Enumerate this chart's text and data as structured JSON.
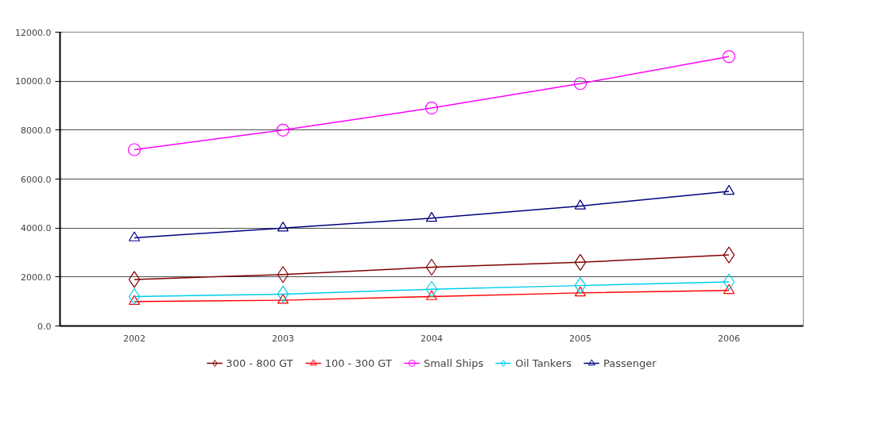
{
  "chart_data": {
    "type": "line",
    "categories": [
      "2002",
      "2003",
      "2004",
      "2005",
      "2006"
    ],
    "series": [
      {
        "name": "300 - 800 GT",
        "color": "#800000",
        "marker": "diamond",
        "values": [
          1900,
          2100,
          2400,
          2600,
          2900
        ]
      },
      {
        "name": "100 - 300 GT",
        "color": "#ff0000",
        "marker": "triangle",
        "values": [
          1000,
          1050,
          1200,
          1350,
          1450
        ]
      },
      {
        "name": "Small Ships",
        "color": "#ff00ff",
        "marker": "circle",
        "values": [
          7200,
          8000,
          8900,
          9900,
          11000
        ]
      },
      {
        "name": "Oil Tankers",
        "color": "#00ccee",
        "marker": "diamond",
        "values": [
          1200,
          1300,
          1500,
          1650,
          1800
        ]
      },
      {
        "name": "Passenger",
        "color": "#000080",
        "marker": "triangle",
        "values": [
          3600,
          4000,
          4400,
          4900,
          5500
        ]
      }
    ],
    "ylim": [
      0,
      12000
    ],
    "yticks": [
      {
        "value": 0,
        "label": "0.0"
      },
      {
        "value": 2000,
        "label": "2000.0"
      },
      {
        "value": 4000,
        "label": "4000.0"
      },
      {
        "value": 6000,
        "label": "6000.0"
      },
      {
        "value": 8000,
        "label": "8000.0"
      },
      {
        "value": 10000,
        "label": "10000.0"
      },
      {
        "value": 12000,
        "label": "12000.0"
      }
    ],
    "grid": "y",
    "legend": "bottom"
  }
}
